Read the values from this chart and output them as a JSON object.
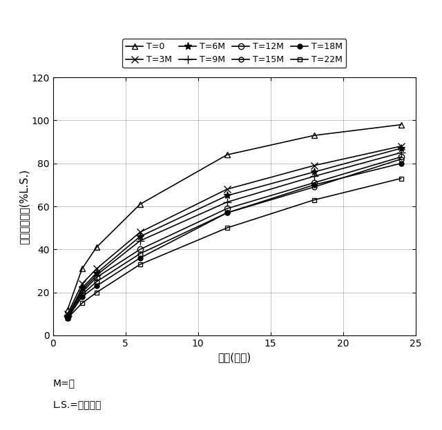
{
  "x_points": [
    1,
    2,
    3,
    6,
    12,
    18,
    24
  ],
  "series": [
    {
      "label": "T=0",
      "values": [
        12,
        31,
        41,
        61,
        84,
        93,
        98
      ],
      "marker": "^",
      "markersize": 6,
      "fillstyle": "none",
      "color": "#000000",
      "linewidth": 1.2
    },
    {
      "label": "T=3M",
      "values": [
        10,
        24,
        31,
        48,
        68,
        79,
        88
      ],
      "marker": "x",
      "markersize": 7,
      "fillstyle": "full",
      "color": "#000000",
      "linewidth": 1.2
    },
    {
      "label": "T=6M",
      "values": [
        9,
        22,
        29,
        46,
        65,
        76,
        87
      ],
      "marker": "*",
      "markersize": 8,
      "fillstyle": "full",
      "color": "#000000",
      "linewidth": 1.2
    },
    {
      "label": "T=9M",
      "values": [
        9,
        21,
        28,
        44,
        62,
        74,
        85
      ],
      "marker": "+",
      "markersize": 8,
      "fillstyle": "full",
      "color": "#000000",
      "linewidth": 1.2
    },
    {
      "label": "T=12M",
      "values": [
        9,
        20,
        27,
        40,
        59,
        71,
        83
      ],
      "marker": "o",
      "markersize": 6,
      "fillstyle": "none",
      "color": "#000000",
      "linewidth": 1.2
    },
    {
      "label": "T=15M",
      "values": [
        8,
        19,
        25,
        38,
        57,
        69,
        82
      ],
      "marker": "o",
      "markersize": 5,
      "fillstyle": "none",
      "color": "#000000",
      "linewidth": 1.2
    },
    {
      "label": "T=18M",
      "values": [
        8,
        18,
        23,
        36,
        57,
        70,
        80
      ],
      "marker": "o",
      "markersize": 5,
      "fillstyle": "full",
      "color": "#000000",
      "linewidth": 1.2
    },
    {
      "label": "T=22M",
      "values": [
        8,
        15,
        20,
        33,
        50,
        63,
        73
      ],
      "marker": "s",
      "markersize": 5,
      "fillstyle": "none",
      "color": "#000000",
      "linewidth": 1.2
    }
  ],
  "xlabel": "時間(時間)",
  "ylabel": "累積薬物放出(%L.S.)",
  "xlim": [
    0,
    25
  ],
  "ylim": [
    0,
    120
  ],
  "xticks": [
    0,
    5,
    10,
    15,
    20,
    25
  ],
  "yticks": [
    0,
    20,
    40,
    60,
    80,
    100,
    120
  ],
  "note1": "M=月",
  "note2": "L.S.=標識強度",
  "background_color": "#ffffff",
  "grid_color": "#888888"
}
